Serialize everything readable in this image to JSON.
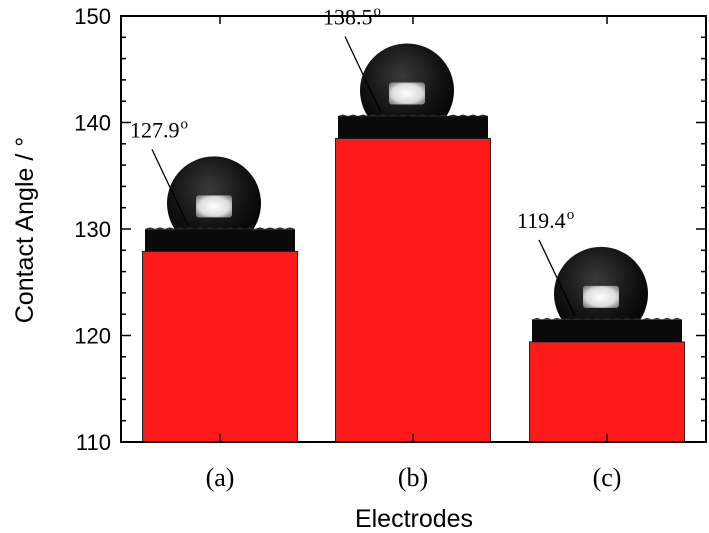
{
  "chart_data": {
    "type": "bar",
    "categories": [
      "(a)",
      "(b)",
      "(c)"
    ],
    "values": [
      127.9,
      138.5,
      119.4
    ],
    "value_labels": [
      "127.9",
      "138.5",
      "119.4"
    ],
    "value_label_superscript": "o",
    "xlabel": "Electrodes",
    "ylabel": "Contact Angle / °",
    "ylim": [
      110,
      150
    ],
    "yticks": [
      110,
      120,
      130,
      140,
      150
    ],
    "bar_color": "#ff1a1a",
    "grid": false,
    "legend": "none",
    "insets": "contact-angle droplet photo above each bar"
  }
}
